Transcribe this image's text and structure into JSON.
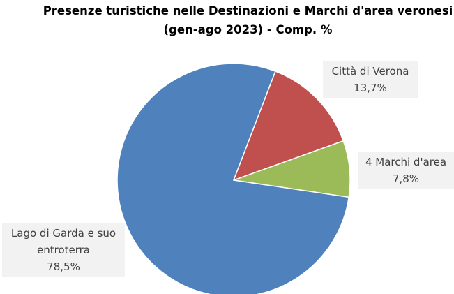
{
  "chart_data": {
    "type": "pie",
    "title": "Presenze turistiche nelle Destinazioni e Marchi d'area veronesi",
    "subtitle": "(gen-ago 2023) - Comp. %",
    "categories": [
      "Città di Verona",
      "4 Marchi d'area",
      "Lago di Garda e suo entroterra"
    ],
    "values": [
      13.7,
      7.8,
      78.5
    ],
    "value_labels": [
      "13,7%",
      "7,8%",
      "78,5%"
    ],
    "colors": [
      "#c0504d",
      "#9bbb59",
      "#4f81bd"
    ]
  }
}
